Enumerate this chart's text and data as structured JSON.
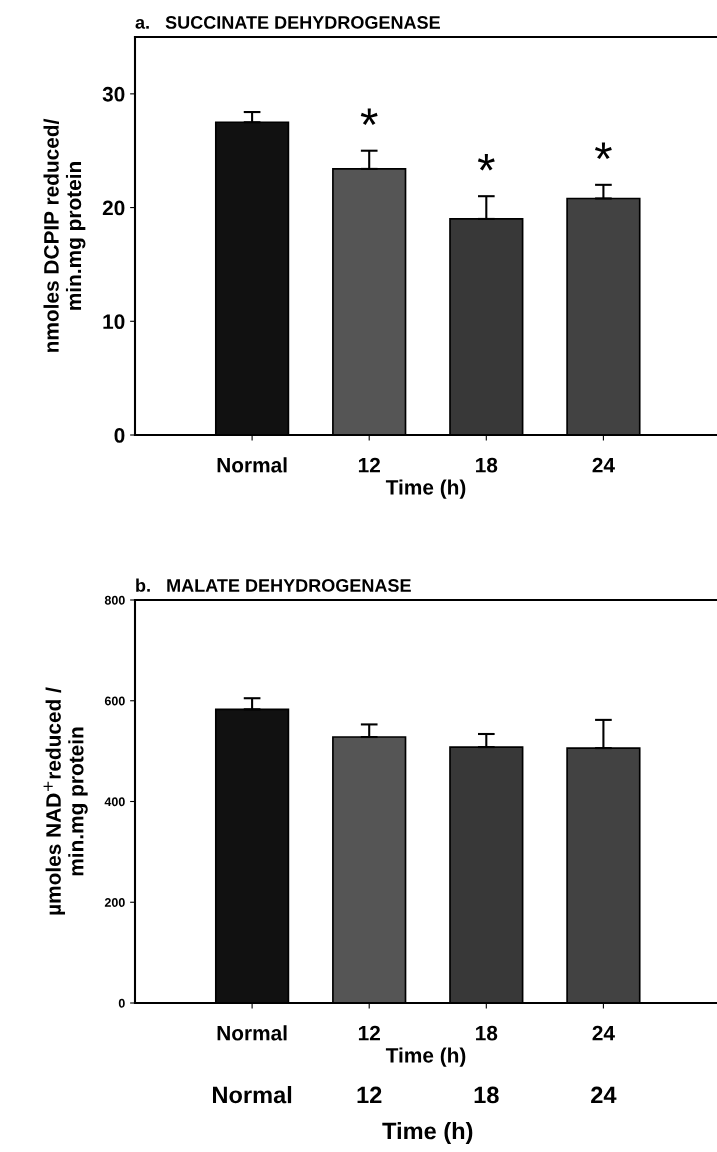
{
  "chart_data": [
    {
      "type": "bar",
      "title": "a.   SUCCINATE DEHYDROGENASE",
      "xlabel": "Time (h)",
      "ylabel": "nmoles DCPIP reduced/\nmin.mg protein",
      "categories": [
        "Normal",
        "12",
        "18",
        "24"
      ],
      "values": [
        27.5,
        23.4,
        19.0,
        20.8
      ],
      "errors": [
        [
          27.5,
          28.4
        ],
        [
          23.4,
          25.0
        ],
        [
          19.0,
          21.0
        ],
        [
          20.8,
          22.0
        ]
      ],
      "colors": [
        "#111111",
        "#555555",
        "#383838",
        "#424242"
      ],
      "ylim": [
        0,
        35
      ],
      "yticks": [
        0,
        10,
        20,
        30
      ],
      "grid": false,
      "legend": false,
      "annotations": [
        {
          "text": "*",
          "x": "12",
          "y": 25.0
        },
        {
          "text": "*",
          "x": "18",
          "y": 21.0
        },
        {
          "text": "*",
          "x": "24",
          "y": 22.0
        }
      ]
    },
    {
      "type": "bar",
      "title": "b.   MALATE DEHYDROGENASE",
      "xlabel": "Time (h)",
      "ylabel": "µmoles NAD$^{+}$reduced /\nmin.mg protein",
      "categories": [
        "Normal",
        "12",
        "18",
        "24"
      ],
      "values": [
        583,
        528,
        508,
        506
      ],
      "errors": [
        [
          583,
          605
        ],
        [
          528,
          553
        ],
        [
          508,
          534
        ],
        [
          506,
          562
        ]
      ],
      "colors": [
        "#111111",
        "#555555",
        "#383838",
        "#424242"
      ],
      "ylim": [
        0,
        800
      ],
      "yticks": [
        0,
        200,
        400,
        600,
        800
      ],
      "grid": false,
      "legend": false,
      "annotations": [
        "Normal",
        "12",
        "18",
        "24",
        "Time (h)"
      ]
    }
  ]
}
